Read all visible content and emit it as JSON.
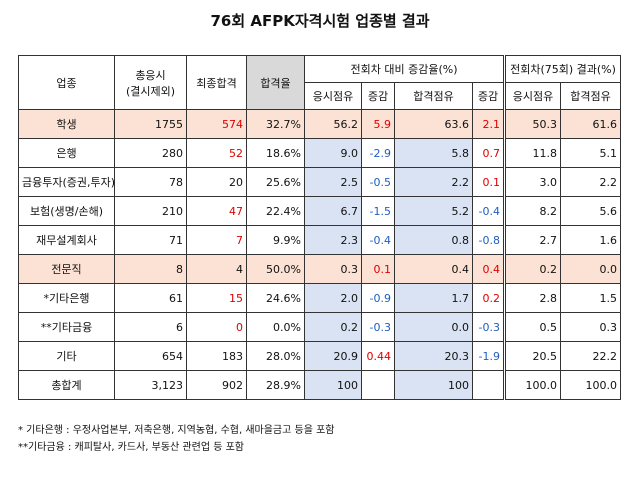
{
  "title": "76회 AFPK자격시험 업종별 결과",
  "table": {
    "header": {
      "industry": "업종",
      "applicants": [
        "총응시",
        "(결시제외)"
      ],
      "passed": "최종합격",
      "pass_rate": "합격율",
      "change_group": "전회차 대비 증감율(%)",
      "prev_group": "전회차(75회) 결과(%)",
      "sub": [
        "응시점유",
        "증감",
        "합격점유",
        "증감",
        "응시점유",
        "합격점유"
      ]
    },
    "rows": [
      [
        "학생",
        "1755",
        "574",
        "32.7%",
        "56.2",
        "5.9",
        "63.6",
        "2.1",
        "50.3",
        "61.6"
      ],
      [
        "은행",
        "280",
        "52",
        "18.6%",
        "9.0",
        "-2.9",
        "5.8",
        "0.7",
        "11.8",
        "5.1"
      ],
      [
        "금융투자(증권,투자)",
        "78",
        "20",
        "25.6%",
        "2.5",
        "-0.5",
        "2.2",
        "0.1",
        "3.0",
        "2.2"
      ],
      [
        "보험(생명/손해)",
        "210",
        "47",
        "22.4%",
        "6.7",
        "-1.5",
        "5.2",
        "-0.4",
        "8.2",
        "5.6"
      ],
      [
        "재무설계회사",
        "71",
        "7",
        "9.9%",
        "2.3",
        "-0.4",
        "0.8",
        "-0.8",
        "2.7",
        "1.6"
      ],
      [
        "전문직",
        "8",
        "4",
        "50.0%",
        "0.3",
        "0.1",
        "0.4",
        "0.4",
        "0.2",
        "0.0"
      ],
      [
        "*기타은행",
        "61",
        "15",
        "24.6%",
        "2.0",
        "-0.9",
        "1.7",
        "0.2",
        "2.8",
        "1.5"
      ],
      [
        "**기타금융",
        "6",
        "0",
        "0.0%",
        "0.2",
        "-0.3",
        "0.0",
        "-0.3",
        "0.5",
        "0.3"
      ],
      [
        "기타",
        "654",
        "183",
        "28.0%",
        "20.9",
        "0.44",
        "20.3",
        "-1.9",
        "20.5",
        "22.2"
      ],
      [
        "총합계",
        "3,123",
        "902",
        "28.9%",
        "100",
        null,
        "100",
        null,
        "100.0",
        "100.0"
      ]
    ]
  },
  "notes": [
    "* 기타은행 : 우정사업본부, 저축은행, 지역농협, 수협, 새마을금고 등을 포함",
    "**기타금융 : 캐피탈사, 카드사, 부동산 관련업 등 포함"
  ]
}
